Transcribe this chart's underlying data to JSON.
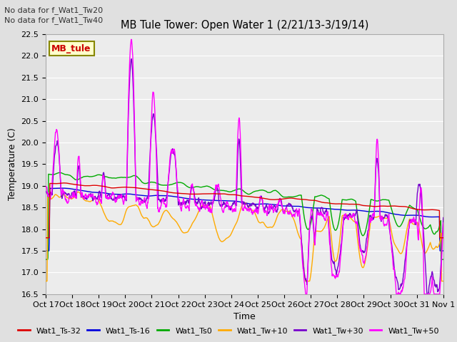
{
  "title": "MB Tule Tower: Open Water 1 (2/21/13-3/19/14)",
  "xlabel": "Time",
  "ylabel": "Temperature (C)",
  "ylim": [
    16.5,
    22.5
  ],
  "yticks": [
    16.5,
    17.0,
    17.5,
    18.0,
    18.5,
    19.0,
    19.5,
    20.0,
    20.5,
    21.0,
    21.5,
    22.0,
    22.5
  ],
  "xtick_labels": [
    "Oct 17",
    "Oct 18",
    "Oct 19",
    "Oct 20",
    "Oct 21",
    "Oct 22",
    "Oct 23",
    "Oct 24",
    "Oct 25",
    "Oct 26",
    "Oct 27",
    "Oct 28",
    "Oct 29",
    "Oct 30",
    "Oct 31",
    "Nov 1"
  ],
  "no_data_text": [
    "No data for f_Wat1_Tw20",
    "No data for f_Wat1_Tw40"
  ],
  "annotation_box": "MB_tule",
  "series_colors": {
    "Wat1_Ts-32": "#dd0000",
    "Wat1_Ts-16": "#0000dd",
    "Wat1_Ts0": "#00aa00",
    "Wat1_Tw+10": "#ffaa00",
    "Wat1_Tw+30": "#7700cc",
    "Wat1_Tw+50": "#ff00ff"
  },
  "bg_color": "#e0e0e0",
  "plot_bg_color": "#ececec",
  "grid_color": "#ffffff",
  "lw": 1.0
}
